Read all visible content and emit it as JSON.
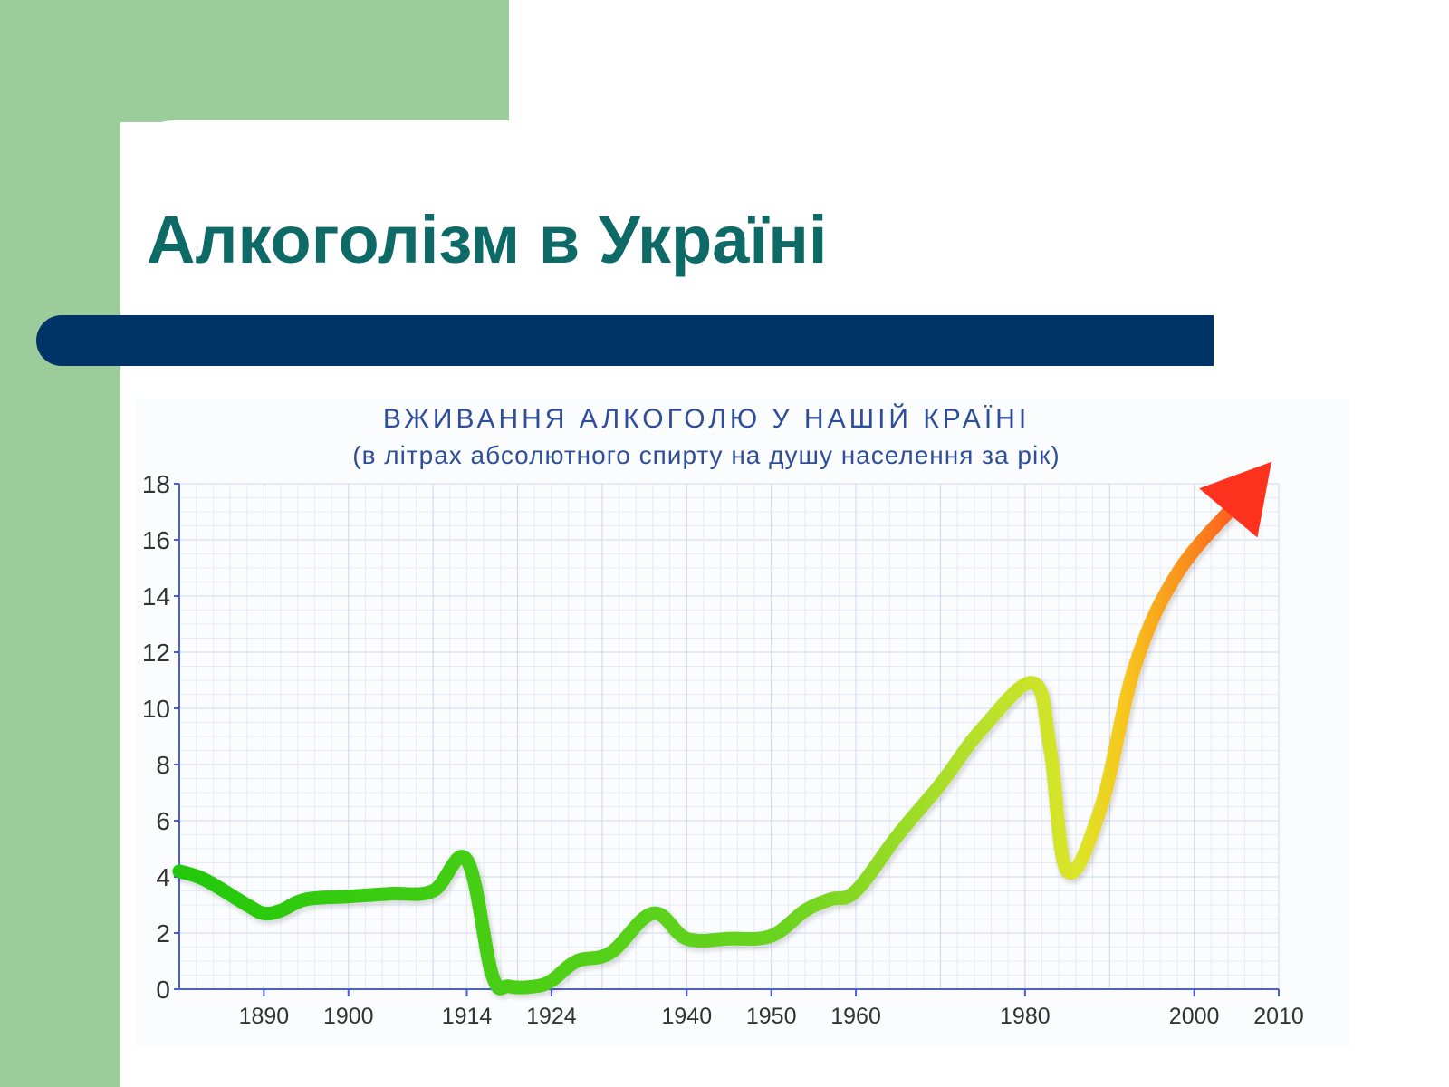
{
  "slide": {
    "title": "Алкоголізм в Україні"
  },
  "chart_data": {
    "type": "line",
    "title": "ВЖИВАННЯ АЛКОГОЛЮ У НАШІЙ КРАЇНІ",
    "subtitle": "(в літрах абсолютного спирту на душу населення за рік)",
    "xlabel": "",
    "ylabel": "",
    "xlim": [
      1880,
      2010
    ],
    "ylim": [
      0,
      18
    ],
    "yticks": [
      0,
      2,
      4,
      6,
      8,
      10,
      12,
      14,
      16,
      18
    ],
    "xticks": [
      1890,
      1900,
      1914,
      1924,
      1940,
      1950,
      1960,
      1980,
      2000,
      2010
    ],
    "grid": true,
    "legend": "none",
    "series": [
      {
        "x": [
          1880,
          1883,
          1888,
          1890,
          1892,
          1895,
          1900,
          1905,
          1910,
          1914,
          1917,
          1919,
          1922,
          1924,
          1927,
          1931,
          1936,
          1940,
          1945,
          1950,
          1954,
          1957,
          1960,
          1965,
          1970,
          1975,
          1981,
          1983,
          1985,
          1989,
          1993,
          1998,
          2005
        ],
        "y": [
          4.2,
          3.9,
          3.0,
          2.7,
          2.8,
          3.2,
          3.3,
          3.4,
          3.5,
          4.6,
          0.5,
          0.1,
          0.1,
          0.3,
          1.0,
          1.3,
          2.7,
          1.8,
          1.8,
          1.9,
          2.8,
          3.2,
          3.5,
          5.5,
          7.3,
          9.3,
          10.9,
          8.5,
          4.2,
          6.5,
          11.5,
          14.8,
          17.3
        ],
        "colors": [
          "#22c80a",
          "#6ad41e",
          "#b4e02a",
          "#dce528",
          "#f7c71e",
          "#fa8c1c",
          "#ff321e"
        ]
      }
    ]
  }
}
